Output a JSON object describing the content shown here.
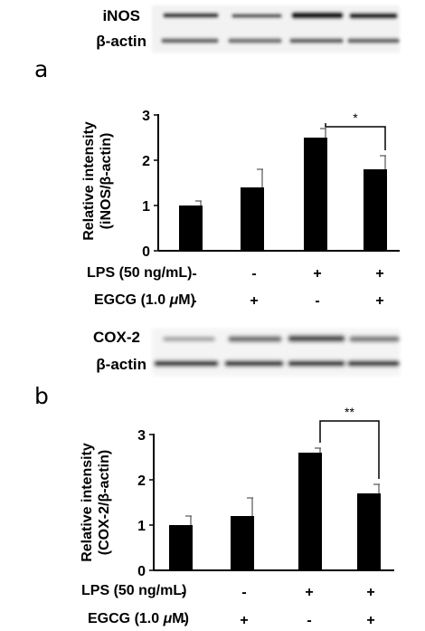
{
  "figure": {
    "blot_a": {
      "protein": "iNOS",
      "control": "β-actin"
    },
    "blot_b": {
      "protein": "COX-2",
      "control": "β-actin"
    },
    "treatments": {
      "lps_label": "LPS (50 ng/mL)",
      "egcg_label_prefix": "EGCG (1.0 ",
      "egcg_label_unit_mu": "μ",
      "egcg_label_suffix": "M)",
      "lps": [
        "-",
        "-",
        "+",
        "+"
      ],
      "egcg": [
        "-",
        "+",
        "-",
        "+"
      ]
    }
  },
  "chart_data": [
    {
      "panel": "a",
      "type": "bar",
      "ylabel_line1": "Relative intensity",
      "ylabel_line2": "(iNOS/β-actin)",
      "ylim": [
        0,
        3
      ],
      "yticks": [
        "0",
        "1",
        "2",
        "3"
      ],
      "values": [
        1.0,
        1.4,
        2.5,
        1.8
      ],
      "errors": [
        0.1,
        0.4,
        0.2,
        0.3
      ],
      "bar_color": "#000000",
      "significance": {
        "between": [
          2,
          3
        ],
        "label": "*"
      }
    },
    {
      "panel": "b",
      "type": "bar",
      "ylabel_line1": "Relative intensity",
      "ylabel_line2": "(COX-2/β-actin)",
      "ylim": [
        0,
        3
      ],
      "yticks": [
        "0",
        "1",
        "2",
        "3"
      ],
      "values": [
        1.0,
        1.2,
        2.6,
        1.7
      ],
      "errors": [
        0.2,
        0.4,
        0.1,
        0.2
      ],
      "bar_color": "#000000",
      "significance": {
        "between": [
          2,
          3
        ],
        "label": "**"
      }
    }
  ]
}
